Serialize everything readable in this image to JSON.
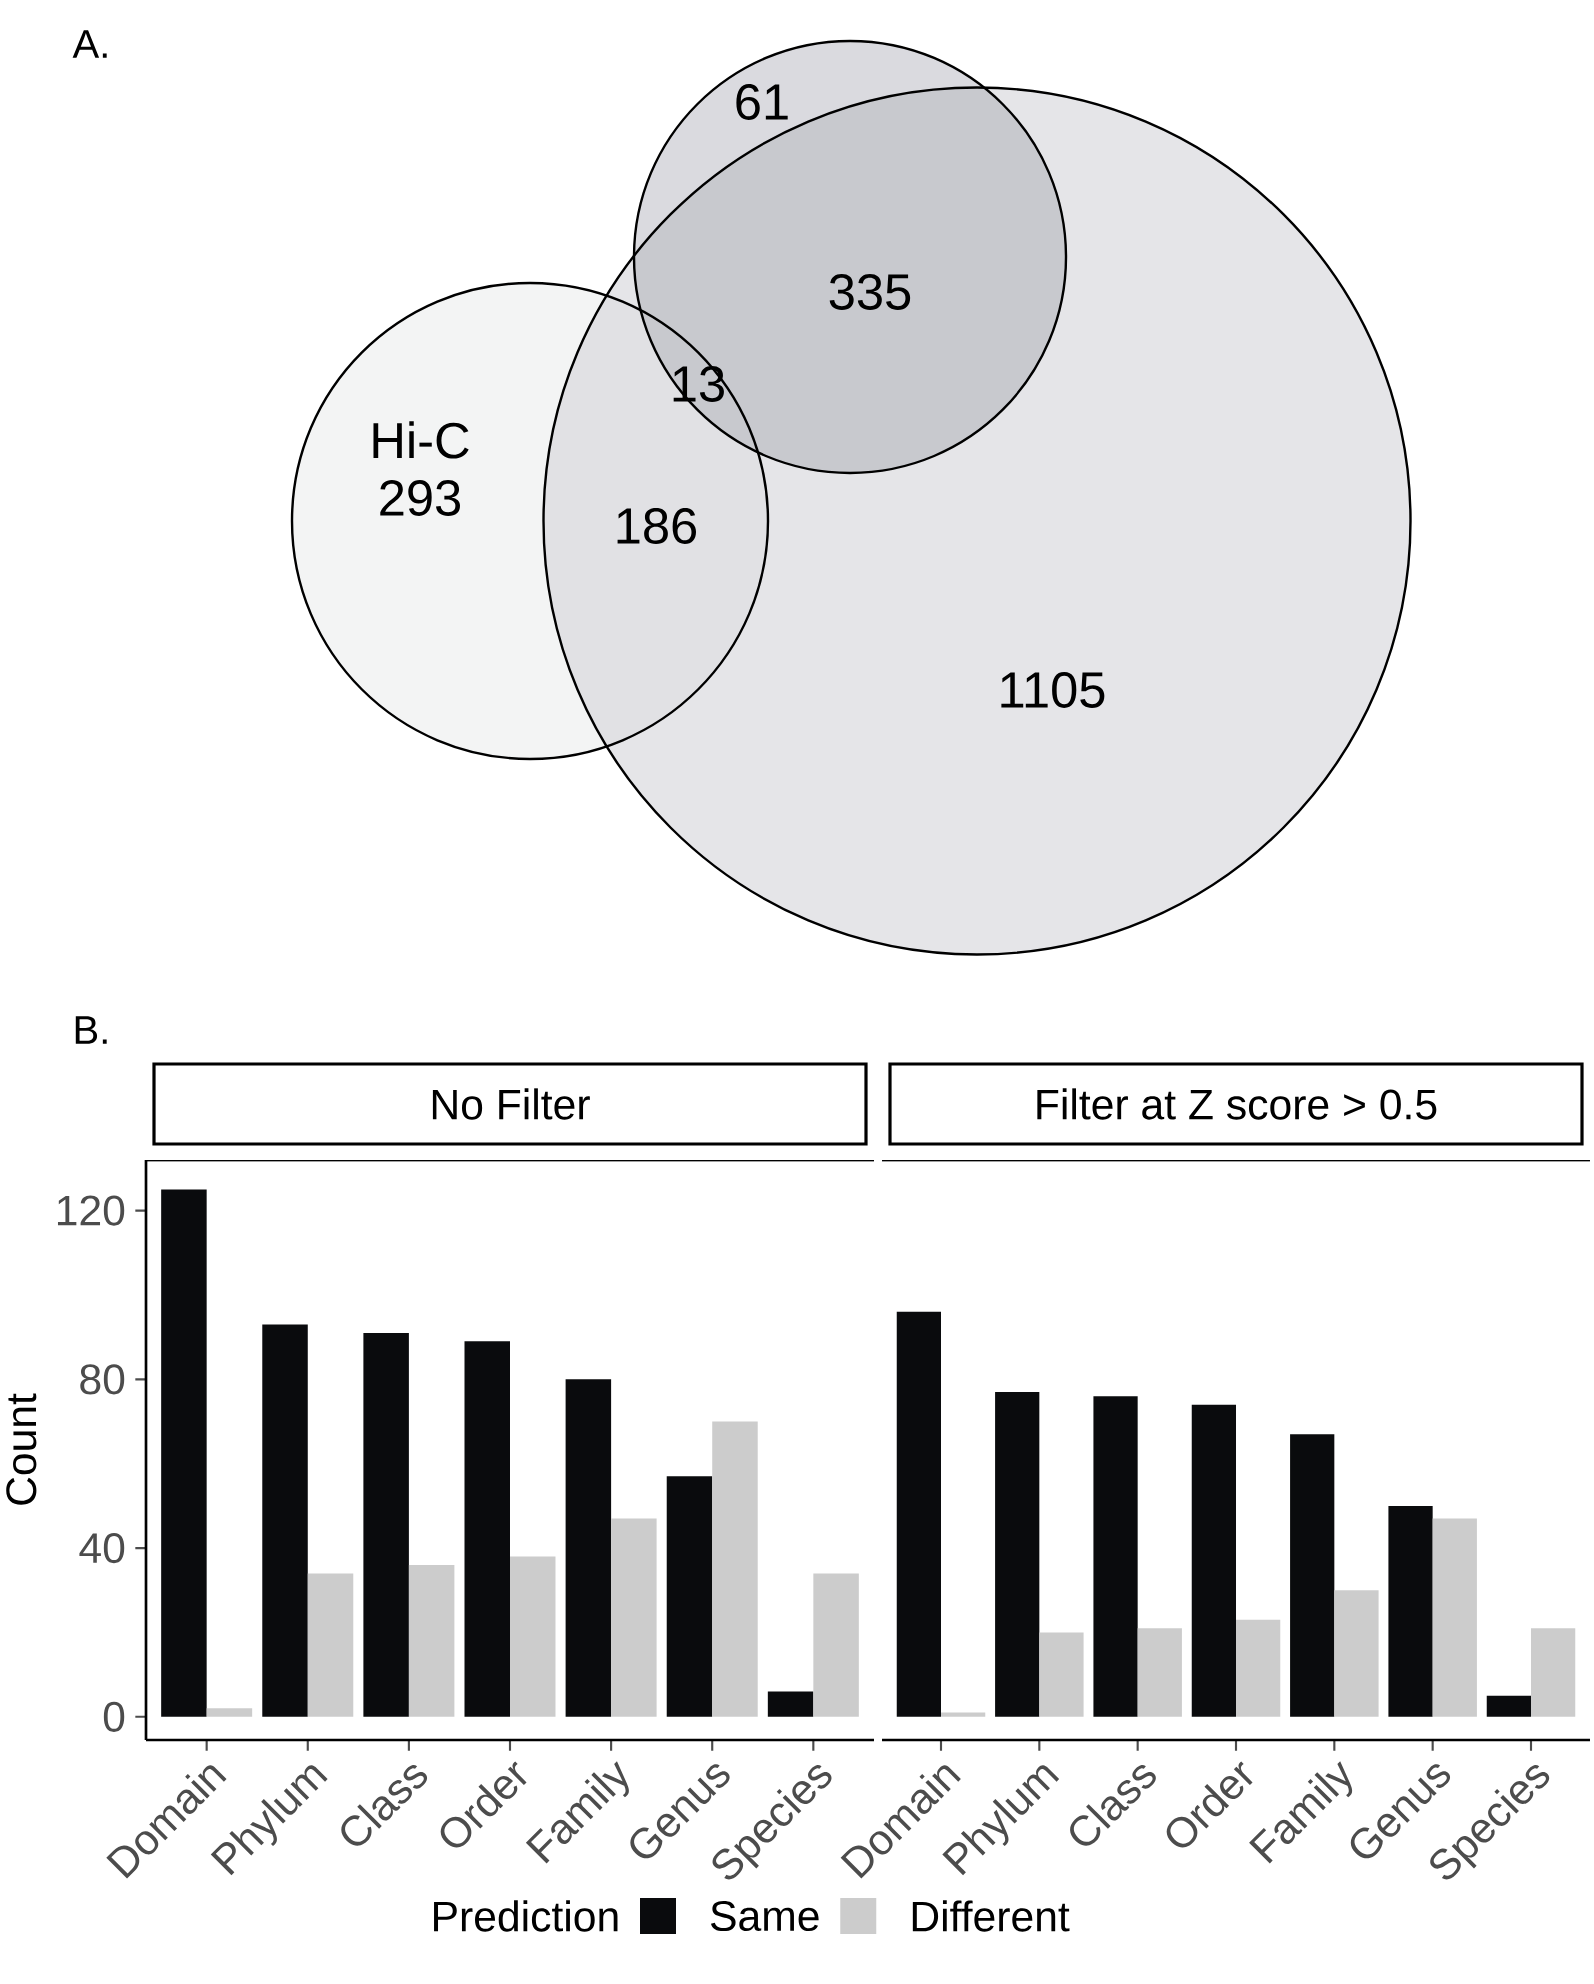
{
  "chart_data": [
    {
      "type": "other",
      "title": "A.",
      "data_labels": true,
      "categories": [
        "Hi-C"
      ],
      "values": [
        293
      ],
      "annotations": [
        "61",
        "1105",
        "186",
        "335",
        "13"
      ]
    },
    {
      "type": "bar",
      "title": "No Filter",
      "annotations": [
        "B."
      ],
      "ylabel": "Count",
      "legend_title": "Prediction",
      "legend": "bottom",
      "categories": [
        "Domain",
        "Phylum",
        "Class",
        "Order",
        "Family",
        "Genus",
        "Species"
      ],
      "ylim": [
        -5.5,
        132
      ],
      "yticks": [
        0,
        40,
        80,
        120
      ],
      "series": [
        {
          "name": "Same",
          "color": "#0a0b0d",
          "values": [
            125,
            93,
            91,
            89,
            80,
            57,
            6
          ]
        },
        {
          "name": "Different",
          "color": "#cccccc",
          "values": [
            2,
            34,
            36,
            38,
            47,
            70,
            34
          ]
        }
      ]
    },
    {
      "type": "bar",
      "title": "Filter at Z score > 0.5",
      "tick_labels": "x",
      "categories": [
        "Domain",
        "Phylum",
        "Class",
        "Order",
        "Family",
        "Genus",
        "Species"
      ],
      "ylim": [
        -5.5,
        132
      ],
      "series": [
        {
          "color": "#0a0b0d",
          "values": [
            96,
            77,
            76,
            74,
            67,
            50,
            5
          ]
        },
        {
          "color": "#cccccc",
          "values": [
            1,
            20,
            21,
            23,
            30,
            47,
            21
          ]
        }
      ]
    }
  ]
}
